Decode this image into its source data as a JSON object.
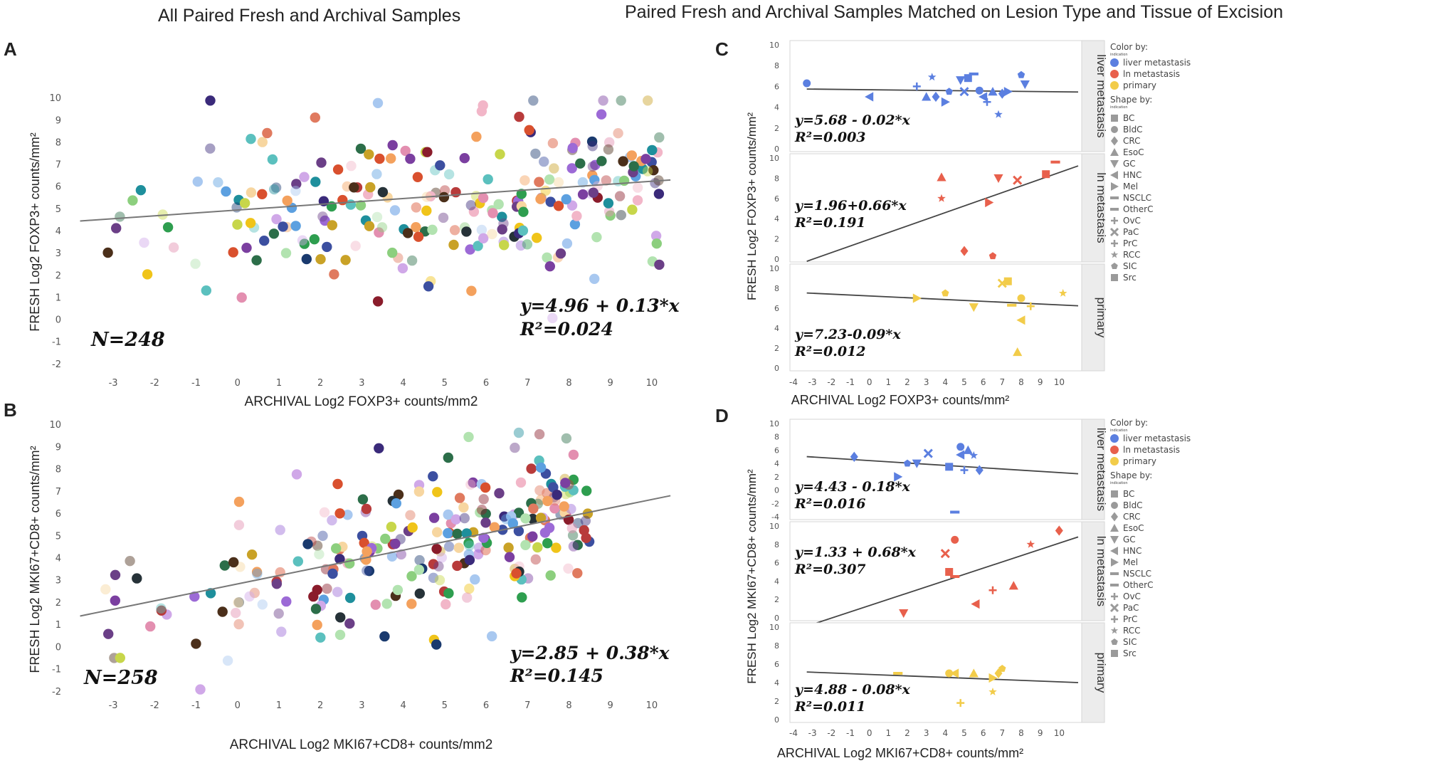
{
  "headings": {
    "left": "All Paired Fresh and Archival Samples",
    "right": "Paired Fresh and Archival Samples Matched on Lesion Type and Tissue of Excision"
  },
  "panels": {
    "a": "A",
    "b": "B",
    "c": "C",
    "d": "D"
  },
  "legend": {
    "color_title": "Color by:",
    "color_sub": "indication",
    "colors": [
      {
        "label": "liver metastasis",
        "color": "#5b7fe0"
      },
      {
        "label": "ln metastasis",
        "color": "#e8604c"
      },
      {
        "label": "primary",
        "color": "#f2cc4a"
      }
    ],
    "shape_title": "Shape by:",
    "shape_sub": "indication",
    "shapes": [
      "BC",
      "BldC",
      "CRC",
      "EsoC",
      "GC",
      "HNC",
      "Mel",
      "NSCLC",
      "OtherC",
      "OvC",
      "PaC",
      "PrC",
      "RCC",
      "SIC",
      "Src"
    ]
  },
  "chart_data": [
    {
      "id": "A",
      "type": "scatter",
      "xlabel": "ARCHIVAL Log2 FOXP3+ counts/mm2",
      "ylabel": "FRESH Log2 FOXP3+ counts/mm²",
      "xticks": [
        "-3",
        "-2",
        "-1",
        "0",
        "1",
        "2",
        "3",
        "4",
        "5",
        "6",
        "7",
        "8",
        "9",
        "10"
      ],
      "yticks": [
        "-2",
        "-1",
        "0",
        "1",
        "2",
        "3",
        "4",
        "5",
        "6",
        "7",
        "8",
        "9",
        "10"
      ],
      "xlim": [
        -3.5,
        10.5
      ],
      "ylim": [
        -2.2,
        10.2
      ],
      "n_label": "N=248",
      "equation": "y=4.96 + 0.13*x",
      "r2": "R²=0.024",
      "fit": {
        "intercept": 4.96,
        "slope": 0.13
      },
      "n": 248
    },
    {
      "id": "B",
      "type": "scatter",
      "xlabel": "ARCHIVAL Log2 MKI67+CD8+ counts/mm2",
      "ylabel": "FRESH Log2 MKI67+CD8+ counts/mm²",
      "xticks": [
        "-3",
        "-2",
        "-1",
        "0",
        "1",
        "2",
        "3",
        "4",
        "5",
        "6",
        "7",
        "8",
        "9",
        "10"
      ],
      "yticks": [
        "-2",
        "-1",
        "0",
        "1",
        "2",
        "3",
        "4",
        "5",
        "6",
        "7",
        "8",
        "9",
        "10"
      ],
      "xlim": [
        -3.5,
        10.5
      ],
      "ylim": [
        -2.2,
        10.2
      ],
      "n_label": "N=258",
      "equation": "y=2.85 + 0.38*x",
      "r2": "R²=0.145",
      "fit": {
        "intercept": 2.85,
        "slope": 0.38
      },
      "n": 258
    },
    {
      "id": "C",
      "type": "scatter-faceted",
      "xlabel": "ARCHIVAL Log2 FOXP3+ counts/mm²",
      "ylabel": "FRESH Log2 FOXP3+ counts/mm²",
      "xticks": [
        "-4",
        "-3",
        "-2",
        "-1",
        "0",
        "1",
        "2",
        "3",
        "4",
        "5",
        "6",
        "7",
        "8",
        "9",
        "10"
      ],
      "xlim": [
        -4,
        11
      ],
      "facets": [
        {
          "label": "liver metastasis",
          "color": "#5b7fe0",
          "yticks": [
            "0",
            "2",
            "4",
            "6",
            "8",
            "10"
          ],
          "ylim": [
            0,
            10
          ],
          "equation": "y=5.68 - 0.02*x",
          "r2": "R²=0.003",
          "fit": {
            "intercept": 5.68,
            "slope": -0.02
          },
          "points": [
            [
              -3.3,
              6.3
            ],
            [
              0,
              5
            ],
            [
              2.5,
              6
            ],
            [
              3,
              5
            ],
            [
              3.3,
              6.9
            ],
            [
              3.5,
              5
            ],
            [
              4,
              4.5
            ],
            [
              4.2,
              5.5
            ],
            [
              4.8,
              6.6
            ],
            [
              5,
              5.5
            ],
            [
              5.2,
              6.8
            ],
            [
              5.5,
              7.2
            ],
            [
              5.8,
              5.6
            ],
            [
              6,
              5
            ],
            [
              6.2,
              4.5
            ],
            [
              6.5,
              5.5
            ],
            [
              6.8,
              3.3
            ],
            [
              7,
              5.3
            ],
            [
              7.3,
              5.5
            ],
            [
              8,
              7.1
            ],
            [
              8.2,
              6.2
            ]
          ]
        },
        {
          "label": "ln metastasis",
          "color": "#e8604c",
          "yticks": [
            "0",
            "2",
            "4",
            "6",
            "8",
            "10"
          ],
          "ylim": [
            0,
            10
          ],
          "equation": "y=1.96+0.66*x",
          "r2": "R²=0.191",
          "fit": {
            "intercept": 1.96,
            "slope": 0.66
          },
          "points": [
            [
              3.8,
              8.1
            ],
            [
              3.8,
              6
            ],
            [
              5,
              0.8
            ],
            [
              6.3,
              5.6
            ],
            [
              6.5,
              0.3
            ],
            [
              6.8,
              8
            ],
            [
              7.8,
              7.8
            ],
            [
              9.3,
              8.4
            ],
            [
              9.8,
              9.6
            ]
          ]
        },
        {
          "label": "primary",
          "color": "#f2cc4a",
          "yticks": [
            "0",
            "2",
            "4",
            "6",
            "8",
            "10"
          ],
          "ylim": [
            0,
            10
          ],
          "equation": "y=7.23-0.09*x",
          "r2": "R²=0.012",
          "fit": {
            "intercept": 7.23,
            "slope": -0.09
          },
          "points": [
            [
              2.5,
              7
            ],
            [
              4,
              7.5
            ],
            [
              5.5,
              6.1
            ],
            [
              7,
              8.5
            ],
            [
              7.3,
              8.7
            ],
            [
              7.5,
              6.3
            ],
            [
              8,
              7
            ],
            [
              8,
              4.8
            ],
            [
              8.5,
              6.2
            ],
            [
              7.8,
              1.6
            ],
            [
              10.2,
              7.5
            ]
          ]
        }
      ]
    },
    {
      "id": "D",
      "type": "scatter-faceted",
      "xlabel": "ARCHIVAL Log2 MKI67+CD8+ counts/mm²",
      "ylabel": "FRESH Log2 MKI67+CD8+ counts/mm²",
      "xticks": [
        "-4",
        "-3",
        "-2",
        "-1",
        "0",
        "1",
        "2",
        "3",
        "4",
        "5",
        "6",
        "7",
        "8",
        "9",
        "10"
      ],
      "xlim": [
        -4,
        11
      ],
      "facets": [
        {
          "label": "liver metastasis",
          "color": "#5b7fe0",
          "yticks": [
            "-4",
            "-2",
            "0",
            "2",
            "4",
            "6",
            "8",
            "10"
          ],
          "ylim": [
            -4,
            10
          ],
          "equation": "y=4.43 - 0.18*x",
          "r2": "R²=0.016",
          "fit": {
            "intercept": 4.43,
            "slope": -0.18
          },
          "points": [
            [
              -0.8,
              5
            ],
            [
              1.5,
              2
            ],
            [
              2,
              4
            ],
            [
              2.5,
              4
            ],
            [
              3.1,
              5.5
            ],
            [
              4.2,
              3.5
            ],
            [
              4.5,
              -3.3
            ],
            [
              4.8,
              6.5
            ],
            [
              4.8,
              5.3
            ],
            [
              5,
              3
            ],
            [
              5.2,
              6
            ],
            [
              5.5,
              5.2
            ],
            [
              5.8,
              3
            ]
          ]
        },
        {
          "label": "ln metastasis",
          "color": "#e8604c",
          "yticks": [
            "0",
            "2",
            "4",
            "6",
            "8",
            "10"
          ],
          "ylim": [
            0,
            10
          ],
          "equation": "y=1.33 + 0.68*x",
          "r2": "R²=0.307",
          "fit": {
            "intercept": 1.33,
            "slope": 0.68
          },
          "points": [
            [
              1.8,
              0.5
            ],
            [
              4,
              7
            ],
            [
              4.2,
              5
            ],
            [
              4.5,
              4.5
            ],
            [
              4.5,
              8.5
            ],
            [
              5.6,
              1.5
            ],
            [
              6.5,
              3
            ],
            [
              7.6,
              3.5
            ],
            [
              8.5,
              8
            ],
            [
              10,
              9.5
            ]
          ]
        },
        {
          "label": "primary",
          "color": "#f2cc4a",
          "yticks": [
            "0",
            "2",
            "4",
            "6",
            "8",
            "10"
          ],
          "ylim": [
            0,
            10
          ],
          "equation": "y=4.88 - 0.08*x",
          "r2": "R²=0.011",
          "fit": {
            "intercept": 4.88,
            "slope": -0.08
          },
          "points": [
            [
              1.5,
              5
            ],
            [
              4.2,
              5
            ],
            [
              4.5,
              5
            ],
            [
              4.8,
              1.8
            ],
            [
              5.5,
              5
            ],
            [
              6.5,
              3
            ],
            [
              6.8,
              5
            ],
            [
              6.5,
              4.5
            ],
            [
              7,
              5.5
            ]
          ]
        }
      ]
    }
  ]
}
